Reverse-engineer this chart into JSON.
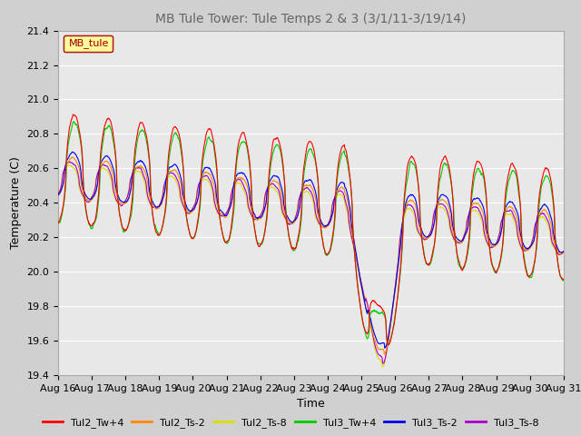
{
  "title": "MB Tule Tower: Tule Temps 2 & 3 (3/1/11-3/19/14)",
  "xlabel": "Time",
  "ylabel": "Temperature (C)",
  "ylim": [
    19.4,
    21.4
  ],
  "x_tick_labels": [
    "Aug 16",
    "Aug 17",
    "Aug 18",
    "Aug 19",
    "Aug 20",
    "Aug 21",
    "Aug 22",
    "Aug 23",
    "Aug 24",
    "Aug 25",
    "Aug 26",
    "Aug 27",
    "Aug 28",
    "Aug 29",
    "Aug 30",
    "Aug 31"
  ],
  "series_colors": {
    "Tul2_Tw+4": "#ff0000",
    "Tul2_Ts-2": "#ff8800",
    "Tul2_Ts-8": "#dddd00",
    "Tul3_Tw+4": "#00cc00",
    "Tul3_Ts-2": "#0000ee",
    "Tul3_Ts-8": "#aa00cc"
  },
  "legend_label": "MB_tule",
  "legend_bg": "#ffff99",
  "legend_border": "#aa0000",
  "plot_bg": "#e8e8e8",
  "fig_bg": "#d0d0d0",
  "grid_color": "#ffffff",
  "title_color": "#666666",
  "title_fontsize": 10,
  "axis_fontsize": 9,
  "tick_fontsize": 8
}
